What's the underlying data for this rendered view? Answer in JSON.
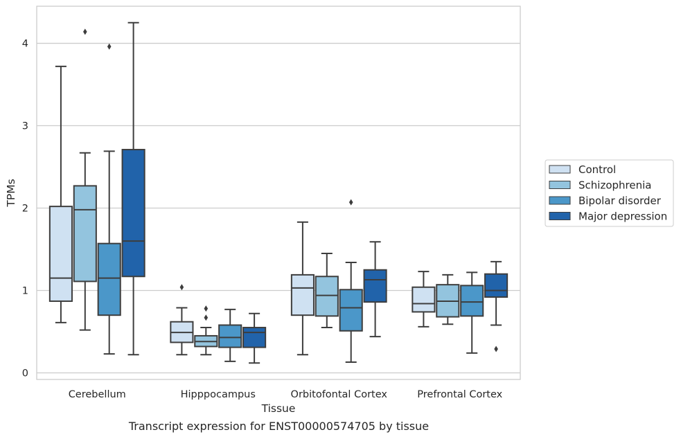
{
  "caption": "Transcript expression for ENST00000574705 by tissue",
  "chart_data": {
    "type": "box",
    "xlabel": "Tissue",
    "ylabel": "TPMs",
    "ylim": [
      -0.08,
      4.45
    ],
    "yticks": [
      0,
      1,
      2,
      3,
      4
    ],
    "grid": "horizontal",
    "legend_position": "right",
    "categories": [
      "Cerebellum",
      "Hipppocampus",
      "Orbitofontal Cortex",
      "Prefrontal Cortex"
    ],
    "series": [
      {
        "name": "Control",
        "color": "#cfe1f2",
        "boxes": [
          {
            "whislo": 0.61,
            "q1": 0.87,
            "med": 1.15,
            "q3": 2.02,
            "whishi": 3.72,
            "fliers": []
          },
          {
            "whislo": 0.22,
            "q1": 0.37,
            "med": 0.49,
            "q3": 0.62,
            "whishi": 0.79,
            "fliers": [
              1.04
            ]
          },
          {
            "whislo": 0.22,
            "q1": 0.7,
            "med": 1.03,
            "q3": 1.19,
            "whishi": 1.83,
            "fliers": []
          },
          {
            "whislo": 0.56,
            "q1": 0.74,
            "med": 0.84,
            "q3": 1.04,
            "whishi": 1.23,
            "fliers": []
          }
        ]
      },
      {
        "name": "Schizophrenia",
        "color": "#93c4de",
        "boxes": [
          {
            "whislo": 0.52,
            "q1": 1.11,
            "med": 1.98,
            "q3": 2.27,
            "whishi": 2.67,
            "fliers": [
              4.14
            ]
          },
          {
            "whislo": 0.22,
            "q1": 0.32,
            "med": 0.38,
            "q3": 0.45,
            "whishi": 0.55,
            "fliers": [
              0.67,
              0.78
            ]
          },
          {
            "whislo": 0.55,
            "q1": 0.69,
            "med": 0.94,
            "q3": 1.17,
            "whishi": 1.45,
            "fliers": []
          },
          {
            "whislo": 0.59,
            "q1": 0.68,
            "med": 0.87,
            "q3": 1.07,
            "whishi": 1.19,
            "fliers": []
          }
        ]
      },
      {
        "name": "Bipolar disorder",
        "color": "#4b97c9",
        "boxes": [
          {
            "whislo": 0.23,
            "q1": 0.7,
            "med": 1.15,
            "q3": 1.57,
            "whishi": 2.69,
            "fliers": [
              3.96
            ]
          },
          {
            "whislo": 0.14,
            "q1": 0.31,
            "med": 0.43,
            "q3": 0.58,
            "whishi": 0.77,
            "fliers": []
          },
          {
            "whislo": 0.13,
            "q1": 0.51,
            "med": 0.79,
            "q3": 1.01,
            "whishi": 1.34,
            "fliers": [
              2.07
            ]
          },
          {
            "whislo": 0.24,
            "q1": 0.69,
            "med": 0.86,
            "q3": 1.06,
            "whishi": 1.22,
            "fliers": []
          }
        ]
      },
      {
        "name": "Major depression",
        "color": "#2163aa",
        "boxes": [
          {
            "whislo": 0.22,
            "q1": 1.17,
            "med": 1.6,
            "q3": 2.71,
            "whishi": 4.25,
            "fliers": []
          },
          {
            "whislo": 0.12,
            "q1": 0.31,
            "med": 0.49,
            "q3": 0.55,
            "whishi": 0.72,
            "fliers": []
          },
          {
            "whislo": 0.44,
            "q1": 0.86,
            "med": 1.13,
            "q3": 1.25,
            "whishi": 1.59,
            "fliers": []
          },
          {
            "whislo": 0.58,
            "q1": 0.92,
            "med": 1.0,
            "q3": 1.2,
            "whishi": 1.35,
            "fliers": [
              0.29
            ]
          }
        ]
      }
    ]
  }
}
